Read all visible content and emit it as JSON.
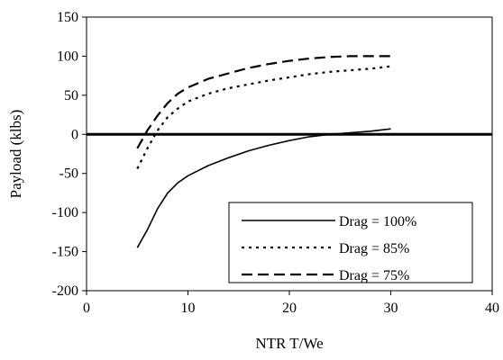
{
  "chart_data": {
    "type": "line",
    "title": "",
    "xlabel": "NTR T/We",
    "ylabel": "Payload (klbs)",
    "xlim": [
      0,
      40
    ],
    "ylim": [
      -200,
      150
    ],
    "x_ticks": [
      "0",
      "10",
      "20",
      "30",
      "40"
    ],
    "y_ticks": [
      "150",
      "100",
      "50",
      "0",
      "-50",
      "-100",
      "-150",
      "-200"
    ],
    "grid": false,
    "legend_position": "bottom-right",
    "zero_line": true,
    "series": [
      {
        "name": "Drag = 100%",
        "style": "solid",
        "color": "#000000",
        "points": [
          [
            5,
            -145
          ],
          [
            6,
            -122
          ],
          [
            7,
            -95
          ],
          [
            8,
            -75
          ],
          [
            9,
            -62
          ],
          [
            10,
            -53
          ],
          [
            12,
            -40
          ],
          [
            14,
            -30
          ],
          [
            16,
            -21
          ],
          [
            18,
            -14
          ],
          [
            20,
            -8
          ],
          [
            22,
            -3
          ],
          [
            24,
            0
          ],
          [
            26,
            2
          ],
          [
            28,
            4
          ],
          [
            30,
            7
          ]
        ]
      },
      {
        "name": "Drag = 85%",
        "style": "dotted",
        "color": "#000000",
        "points": [
          [
            5,
            -44
          ],
          [
            6,
            -18
          ],
          [
            7,
            5
          ],
          [
            8,
            22
          ],
          [
            9,
            33
          ],
          [
            10,
            42
          ],
          [
            12,
            52
          ],
          [
            14,
            59
          ],
          [
            16,
            64
          ],
          [
            18,
            69
          ],
          [
            20,
            73
          ],
          [
            22,
            77
          ],
          [
            24,
            80
          ],
          [
            26,
            82
          ],
          [
            28,
            84
          ],
          [
            30,
            87
          ]
        ]
      },
      {
        "name": "Drag = 75%",
        "style": "dashed",
        "color": "#000000",
        "points": [
          [
            5,
            -18
          ],
          [
            6,
            5
          ],
          [
            7,
            24
          ],
          [
            8,
            40
          ],
          [
            9,
            52
          ],
          [
            10,
            60
          ],
          [
            12,
            71
          ],
          [
            14,
            78
          ],
          [
            16,
            85
          ],
          [
            18,
            90
          ],
          [
            20,
            94
          ],
          [
            22,
            97
          ],
          [
            24,
            99
          ],
          [
            26,
            100
          ],
          [
            28,
            100
          ],
          [
            30,
            100
          ]
        ]
      }
    ]
  }
}
